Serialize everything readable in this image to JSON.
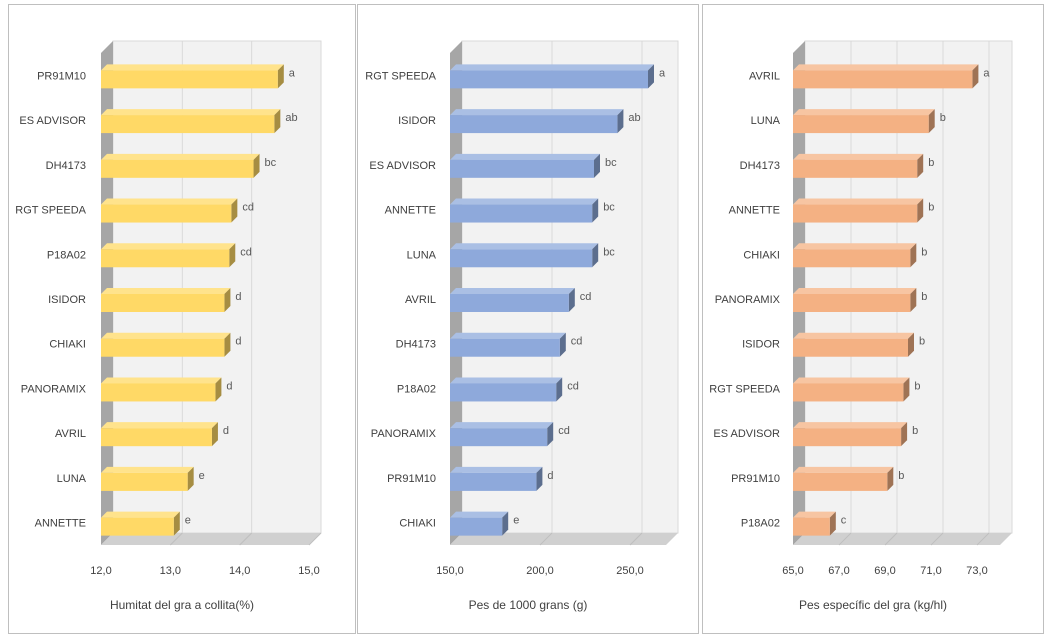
{
  "chart_data": [
    {
      "type": "bar",
      "orientation": "horizontal",
      "style": "3d",
      "xlabel": "Humitat del gra a collita(%)",
      "xlim": [
        12.0,
        15.0
      ],
      "xticks": [
        "12,0",
        "13,0",
        "14,0",
        "15,0"
      ],
      "grid": true,
      "color": "#FFD966",
      "categories": [
        "PR91M10",
        "ES ADVISOR",
        "DH4173",
        "RGT SPEEDA",
        "P18A02",
        "ISIDOR",
        "CHIAKI",
        "PANORAMIX",
        "AVRIL",
        "LUNA",
        "ANNETTE"
      ],
      "values": [
        14.55,
        14.5,
        14.2,
        13.88,
        13.85,
        13.78,
        13.78,
        13.65,
        13.6,
        13.25,
        13.05
      ],
      "labels": [
        "a",
        "ab",
        "bc",
        "cd",
        "cd",
        "d",
        "d",
        "d",
        "d",
        "e",
        "e"
      ]
    },
    {
      "type": "bar",
      "orientation": "horizontal",
      "style": "3d",
      "xlabel": "Pes de 1000 grans (g)",
      "xlim": [
        150.0,
        270.0
      ],
      "xticks": [
        "150,0",
        "200,0",
        "250,0"
      ],
      "grid": true,
      "color": "#8EA9DB",
      "categories": [
        "RGT SPEEDA",
        "ISIDOR",
        "ES ADVISOR",
        "ANNETTE",
        "LUNA",
        "AVRIL",
        "DH4173",
        "P18A02",
        "PANORAMIX",
        "PR91M10",
        "CHIAKI"
      ],
      "values": [
        260,
        243,
        230,
        229,
        229,
        216,
        211,
        209,
        204,
        198,
        179
      ],
      "labels": [
        "a",
        "ab",
        "bc",
        "bc",
        "bc",
        "cd",
        "cd",
        "cd",
        "cd",
        "d",
        "e"
      ]
    },
    {
      "type": "bar",
      "orientation": "horizontal",
      "style": "3d",
      "xlabel": "Pes específic del gra (kg/hl)",
      "xlim": [
        65.0,
        74.0
      ],
      "xticks": [
        "65,0",
        "67,0",
        "69,0",
        "71,0",
        "73,0"
      ],
      "grid": true,
      "color": "#F4B183",
      "categories": [
        "AVRIL",
        "LUNA",
        "DH4173",
        "ANNETTE",
        "CHIAKI",
        "PANORAMIX",
        "ISIDOR",
        "RGT SPEEDA",
        "ES ADVISOR",
        "PR91M10",
        "P18A02"
      ],
      "values": [
        72.8,
        70.9,
        70.4,
        70.4,
        70.1,
        70.1,
        70.0,
        69.8,
        69.7,
        69.1,
        66.6
      ],
      "labels": [
        "a",
        "b",
        "b",
        "b",
        "b",
        "b",
        "b",
        "b",
        "b",
        "b",
        "c"
      ]
    }
  ]
}
